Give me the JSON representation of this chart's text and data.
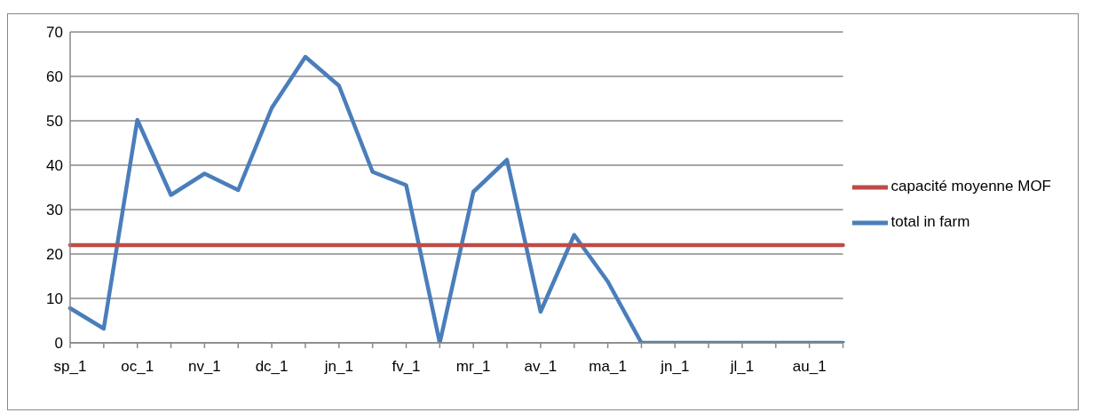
{
  "chart_data": {
    "type": "line",
    "categories": [
      "sp_1",
      null,
      "oc_1",
      null,
      "nv_1",
      null,
      "dc_1",
      null,
      "jn_1",
      null,
      "fv_1",
      null,
      "mr_1",
      null,
      "av_1",
      null,
      "ma_1",
      null,
      "jn_1",
      null,
      "jl_1",
      null,
      "au_1",
      null
    ],
    "series": [
      {
        "name": "total in farm",
        "color": "#4a7ebb",
        "values": [
          7.8,
          3.2,
          50.2,
          33.3,
          38.1,
          34.4,
          52.9,
          64.4,
          57.9,
          38.5,
          35.5,
          0,
          34,
          41.2,
          7,
          24.3,
          13.8,
          0,
          0,
          0,
          0,
          0,
          0,
          0
        ]
      },
      {
        "name": "capacité moyenne MOF",
        "color": "#be4b48",
        "values": [
          22,
          22,
          22,
          22,
          22,
          22,
          22,
          22,
          22,
          22,
          22,
          22,
          22,
          22,
          22,
          22,
          22,
          22,
          22,
          22,
          22,
          22,
          22,
          22
        ]
      }
    ],
    "ylim": [
      0,
      70
    ],
    "yticks": [
      0,
      10,
      20,
      30,
      40,
      50,
      60,
      70
    ],
    "grid": "y",
    "legend": "right",
    "marker": "none",
    "line_style": "solid"
  }
}
